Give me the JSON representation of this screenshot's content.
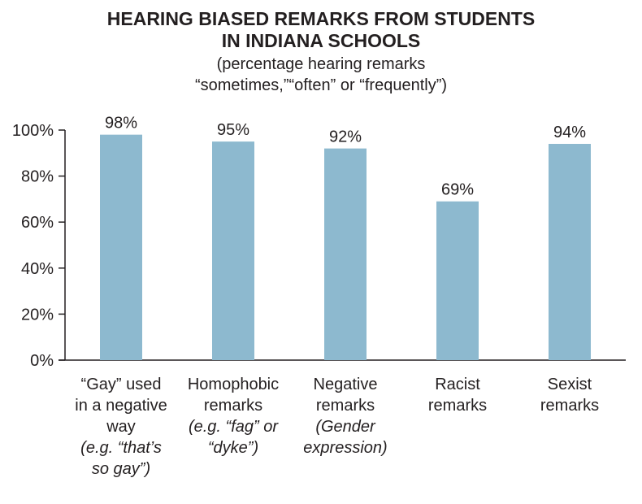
{
  "chart_data": {
    "type": "bar",
    "title_lines": [
      "HEARING BIASED REMARKS FROM STUDENTS",
      "IN INDIANA SCHOOLS"
    ],
    "subtitle_lines": [
      "(percentage hearing remarks",
      "“sometimes,”“often” or “frequently”)"
    ],
    "categories": [
      {
        "label": [
          "“Gay” used",
          "in a negative",
          "way"
        ],
        "example": [
          "(e.g. “that’s",
          "so gay”)"
        ]
      },
      {
        "label": [
          "Homophobic",
          "remarks"
        ],
        "example": [
          "(e.g. “fag” or",
          "“dyke”)"
        ]
      },
      {
        "label": [
          "Negative",
          "remarks"
        ],
        "example": [
          "(Gender",
          "expression)"
        ]
      },
      {
        "label": [
          "Racist",
          "remarks"
        ],
        "example": []
      },
      {
        "label": [
          "Sexist",
          "remarks"
        ],
        "example": []
      }
    ],
    "values": [
      98,
      95,
      92,
      69,
      94
    ],
    "data_labels": [
      "98%",
      "95%",
      "92%",
      "69%",
      "94%"
    ],
    "ylim": [
      0,
      100
    ],
    "yticks": [
      0,
      20,
      40,
      60,
      80,
      100
    ],
    "ytick_labels": [
      "0%",
      "20%",
      "40%",
      "60%",
      "80%",
      "100%"
    ],
    "grid": false,
    "bar_color": "#8db9cf",
    "axis_color": "#231f20"
  }
}
